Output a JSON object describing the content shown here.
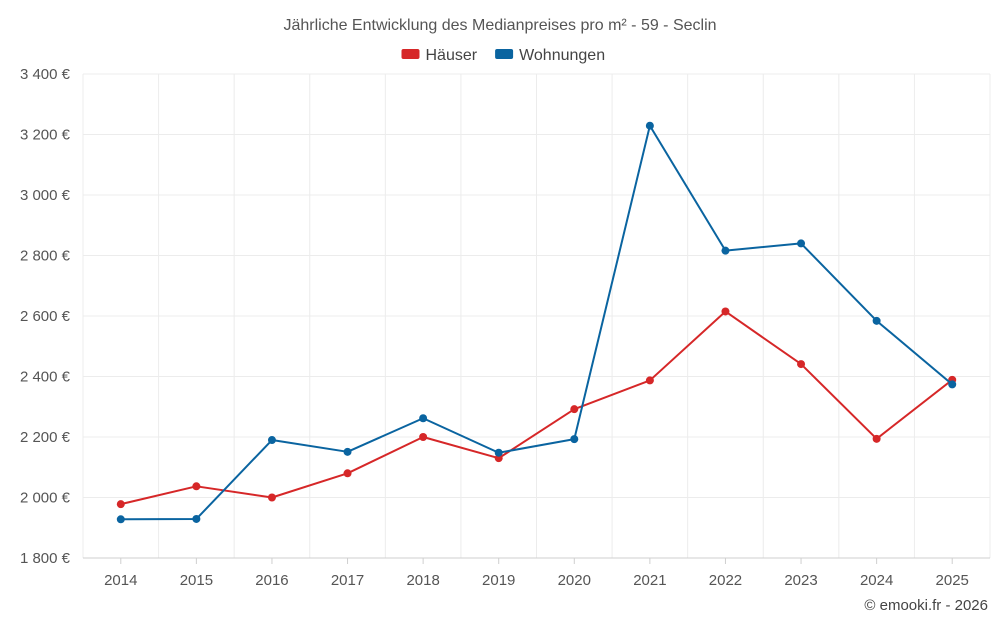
{
  "chart_data": {
    "type": "line",
    "title": "Jährliche Entwicklung des Medianpreises pro m² - 59 - Seclin",
    "xlabel": "",
    "ylabel": "",
    "categories": [
      "2014",
      "2015",
      "2016",
      "2017",
      "2018",
      "2019",
      "2020",
      "2021",
      "2022",
      "2023",
      "2024",
      "2025"
    ],
    "ylim": [
      1800,
      3400
    ],
    "yticks": [
      1800,
      2000,
      2200,
      2400,
      2600,
      2800,
      3000,
      3200,
      3400
    ],
    "ytick_labels": [
      "1 800 €",
      "2 000 €",
      "2 200 €",
      "2 400 €",
      "2 600 €",
      "2 800 €",
      "3 000 €",
      "3 200 €",
      "3 400 €"
    ],
    "grid": true,
    "legend_position": "top-center",
    "series": [
      {
        "name": "Häuser",
        "color": "#d62728",
        "values": [
          1978,
          2037,
          2000,
          2080,
          2200,
          2130,
          2292,
          2387,
          2615,
          2441,
          2194,
          2389
        ]
      },
      {
        "name": "Wohnungen",
        "color": "#0a64a0",
        "values": [
          1928,
          1929,
          2190,
          2151,
          2262,
          2148,
          2193,
          3229,
          2816,
          2840,
          2584,
          2374
        ]
      }
    ]
  },
  "footer": {
    "credit": "© emooki.fr - 2026"
  }
}
